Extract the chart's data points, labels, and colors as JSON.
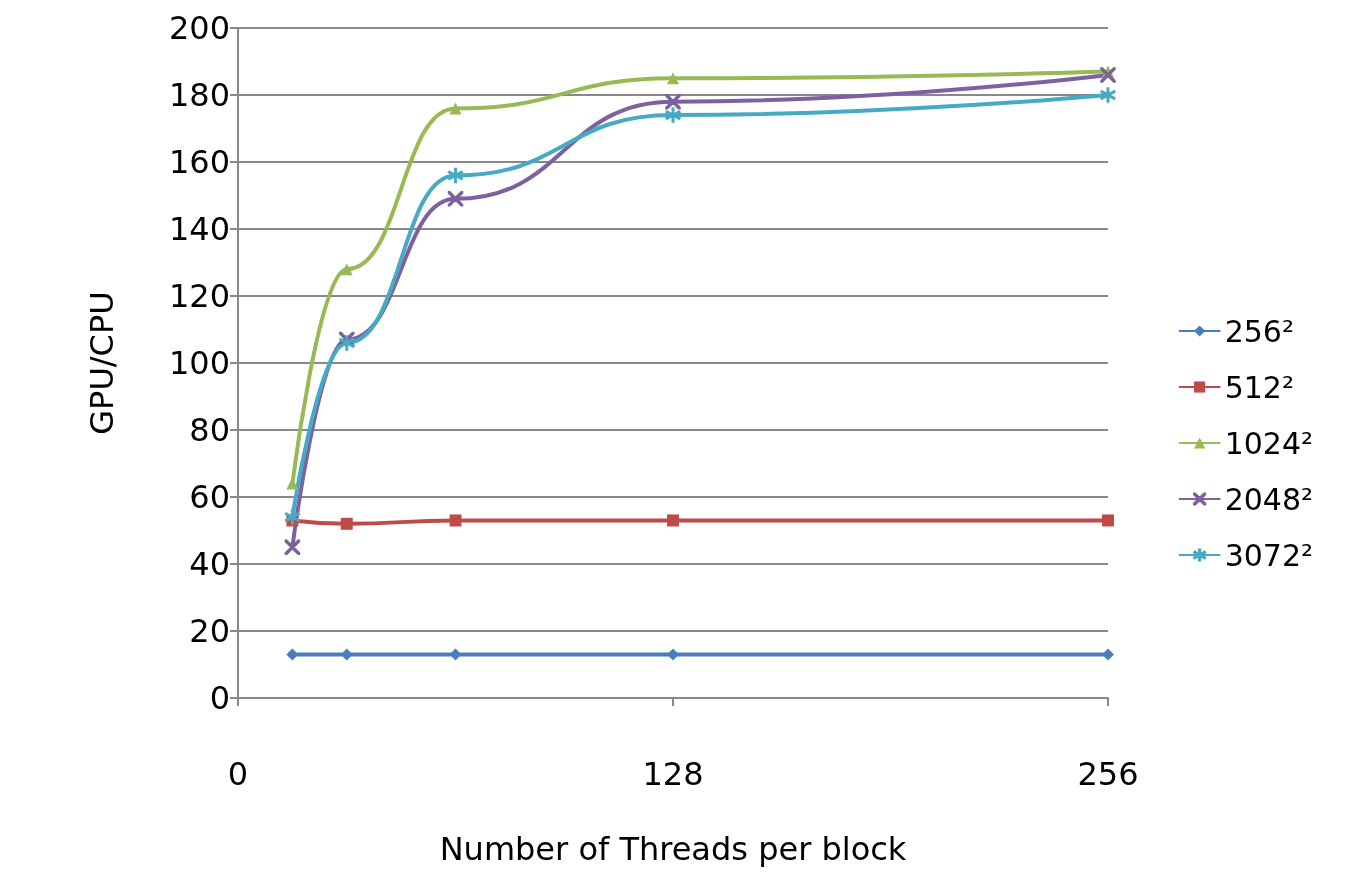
{
  "chart_data": {
    "type": "line",
    "xlabel": "Number of Threads per block",
    "ylabel": "GPU/CPU",
    "x": [
      16,
      32,
      64,
      128,
      256
    ],
    "xlim": [
      0,
      256
    ],
    "xticks": [
      0,
      128,
      256
    ],
    "ylim": [
      0,
      200
    ],
    "yticks": [
      0,
      20,
      40,
      60,
      80,
      100,
      120,
      140,
      160,
      180,
      200
    ],
    "grid": "y",
    "legend": "right",
    "series": [
      {
        "name": "256²",
        "color": "#4a7ebb",
        "marker": "diamond",
        "values": [
          13,
          13,
          13,
          13,
          13
        ]
      },
      {
        "name": "512²",
        "color": "#be4b48",
        "marker": "square",
        "values": [
          53,
          52,
          53,
          53,
          53
        ]
      },
      {
        "name": "1024²",
        "color": "#98b954",
        "marker": "triangle",
        "values": [
          64,
          128,
          176,
          185,
          187
        ]
      },
      {
        "name": "2048²",
        "color": "#7d60a0",
        "marker": "cross",
        "values": [
          45,
          107,
          149,
          178,
          186
        ]
      },
      {
        "name": "3072²",
        "color": "#46aac5",
        "marker": "star",
        "values": [
          54,
          106,
          156,
          174,
          180
        ]
      }
    ]
  }
}
